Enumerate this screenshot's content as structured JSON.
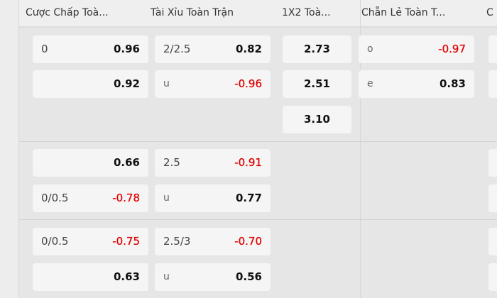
{
  "headers": [
    "Cược Chấp Toà...",
    "Tài Xỉu Toàn Trận",
    "1X2 Toà...",
    "Chẵn Lẻ Toàn T...",
    "C"
  ],
  "colors": {
    "negative": "#e00000",
    "positive": "#111111"
  },
  "blocks": [
    {
      "handicap": [
        {
          "line": "0",
          "odds": "0.96"
        },
        {
          "line": "",
          "odds": "0.92"
        }
      ],
      "over_under": [
        {
          "line": "2/2.5",
          "odds": "0.82"
        },
        {
          "line": "u",
          "odds": "-0.96"
        }
      ],
      "x12": [
        "2.73",
        "2.51",
        "3.10"
      ],
      "odd_even": [
        {
          "line": "o",
          "odds": "-0.97"
        },
        {
          "line": "e",
          "odds": "0.83"
        }
      ]
    },
    {
      "handicap": [
        {
          "line": "",
          "odds": "0.66"
        },
        {
          "line": "0/0.5",
          "odds": "-0.78"
        }
      ],
      "over_under": [
        {
          "line": "2.5",
          "odds": "-0.91"
        },
        {
          "line": "u",
          "odds": "0.77"
        }
      ],
      "x12": [],
      "odd_even": []
    },
    {
      "handicap": [
        {
          "line": "0/0.5",
          "odds": "-0.75"
        },
        {
          "line": "",
          "odds": "0.63"
        }
      ],
      "over_under": [
        {
          "line": "2.5/3",
          "odds": "-0.70"
        },
        {
          "line": "u",
          "odds": "0.56"
        }
      ],
      "x12": [],
      "odd_even": []
    }
  ]
}
